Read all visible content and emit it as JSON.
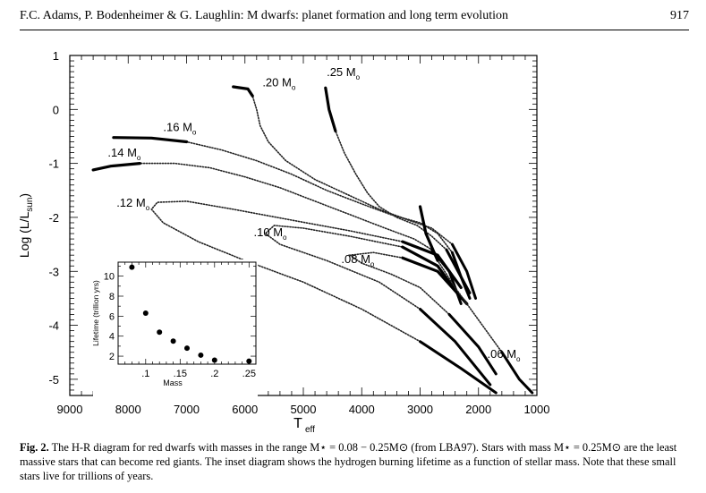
{
  "header": {
    "title": "F.C. Adams, P. Bodenheimer & G. Laughlin: M dwarfs: planet formation and long term evolution",
    "page_number": "917"
  },
  "chart_data": [
    {
      "type": "line",
      "xlabel": "T",
      "xlabel_sub": "eff",
      "ylabel": "Log (L/L",
      "ylabel_sub": "sun",
      "ylabel_end": ")",
      "xlim": [
        9000,
        1000
      ],
      "ylim": [
        -5.3,
        1
      ],
      "x_ticks": [
        "9000",
        "8000",
        "7000",
        "6000",
        "5000",
        "4000",
        "3000",
        "2000",
        "1000"
      ],
      "x_tick_values": [
        9000,
        8000,
        7000,
        6000,
        5000,
        4000,
        3000,
        2000,
        1000
      ],
      "y_ticks": [
        "1",
        "0",
        "-1",
        "-2",
        "-3",
        "-4",
        "-5"
      ],
      "y_tick_values": [
        1,
        0,
        -1,
        -2,
        -3,
        -4,
        -5
      ],
      "series": [
        {
          "name": ".25 M",
          "name_sub": "o",
          "label_at": [
            4600,
            0.62
          ],
          "points": [
            [
              4620,
              0.4
            ],
            [
              4560,
              0.0
            ],
            [
              4450,
              -0.4
            ],
            [
              4300,
              -0.8
            ],
            [
              4100,
              -1.2
            ],
            [
              3900,
              -1.55
            ],
            [
              3700,
              -1.8
            ],
            [
              3400,
              -2.0
            ],
            [
              3050,
              -2.15
            ],
            [
              2800,
              -2.35
            ],
            [
              2550,
              -2.6
            ],
            [
              2350,
              -3.0
            ],
            [
              2150,
              -3.4
            ]
          ]
        },
        {
          "name": ".20 M",
          "name_sub": "o",
          "label_at": [
            5700,
            0.43
          ],
          "points": [
            [
              6200,
              0.42
            ],
            [
              5950,
              0.38
            ],
            [
              5870,
              0.25
            ],
            [
              5800,
              0.0
            ],
            [
              5740,
              -0.3
            ],
            [
              5600,
              -0.6
            ],
            [
              5300,
              -0.95
            ],
            [
              4800,
              -1.3
            ],
            [
              4200,
              -1.6
            ],
            [
              3700,
              -1.85
            ],
            [
              3200,
              -2.05
            ],
            [
              2800,
              -2.2
            ],
            [
              2450,
              -2.5
            ],
            [
              2200,
              -3.0
            ],
            [
              2050,
              -3.5
            ]
          ]
        },
        {
          "name": ".16 M",
          "name_sub": "o",
          "label_at": [
            7400,
            -0.4
          ],
          "points": [
            [
              8250,
              -0.52
            ],
            [
              7600,
              -0.53
            ],
            [
              7000,
              -0.6
            ],
            [
              6400,
              -0.75
            ],
            [
              5800,
              -0.95
            ],
            [
              5200,
              -1.2
            ],
            [
              4600,
              -1.5
            ],
            [
              4000,
              -1.75
            ],
            [
              3500,
              -1.95
            ],
            [
              3000,
              -2.1
            ],
            [
              2700,
              -2.3
            ],
            [
              2450,
              -2.65
            ],
            [
              2300,
              -3.1
            ],
            [
              2150,
              -3.5
            ]
          ]
        },
        {
          "name": ".14 M",
          "name_sub": "o",
          "label_at": [
            8350,
            -0.87
          ],
          "points": [
            [
              8600,
              -1.12
            ],
            [
              8300,
              -1.05
            ],
            [
              7800,
              -1.0
            ],
            [
              7200,
              -1.0
            ],
            [
              6600,
              -1.08
            ],
            [
              6000,
              -1.25
            ],
            [
              5400,
              -1.45
            ],
            [
              4800,
              -1.7
            ],
            [
              4200,
              -1.95
            ],
            [
              3600,
              -2.2
            ],
            [
              3100,
              -2.4
            ],
            [
              2800,
              -2.6
            ],
            [
              2500,
              -3.0
            ],
            [
              2300,
              -3.6
            ]
          ]
        },
        {
          "name": ".12 M",
          "name_sub": "o",
          "label_at": [
            8200,
            -1.8
          ],
          "points": [
            [
              2300,
              -3.3
            ],
            [
              2700,
              -2.7
            ],
            [
              3300,
              -2.45
            ],
            [
              4200,
              -2.25
            ],
            [
              5200,
              -2.05
            ],
            [
              6200,
              -1.85
            ],
            [
              7000,
              -1.7
            ],
            [
              7500,
              -1.72
            ],
            [
              7600,
              -1.85
            ],
            [
              7400,
              -2.1
            ],
            [
              6800,
              -2.45
            ],
            [
              6000,
              -2.8
            ],
            [
              5000,
              -3.2
            ],
            [
              4000,
              -3.7
            ],
            [
              3000,
              -4.3
            ],
            [
              2300,
              -4.8
            ],
            [
              1700,
              -5.25
            ]
          ]
        },
        {
          "name": ".10 M",
          "name_sub": "o",
          "label_at": [
            5850,
            -2.35
          ],
          "points": [
            [
              2300,
              -3.5
            ],
            [
              2700,
              -2.9
            ],
            [
              3300,
              -2.55
            ],
            [
              4200,
              -2.35
            ],
            [
              5000,
              -2.2
            ],
            [
              5500,
              -2.15
            ],
            [
              5650,
              -2.3
            ],
            [
              5400,
              -2.5
            ],
            [
              4600,
              -2.8
            ],
            [
              3700,
              -3.2
            ],
            [
              3000,
              -3.7
            ],
            [
              2400,
              -4.3
            ],
            [
              1800,
              -5.1
            ]
          ]
        },
        {
          "name": ".08 M",
          "name_sub": "o",
          "label_at": [
            4350,
            -2.85
          ],
          "points": [
            [
              2200,
              -3.6
            ],
            [
              2700,
              -3.0
            ],
            [
              3300,
              -2.75
            ],
            [
              3800,
              -2.65
            ],
            [
              4200,
              -2.7
            ],
            [
              4000,
              -2.85
            ],
            [
              3500,
              -3.05
            ],
            [
              3000,
              -3.3
            ],
            [
              2500,
              -3.8
            ],
            [
              2000,
              -4.4
            ],
            [
              1700,
              -4.9
            ]
          ]
        },
        {
          "name": ".06 M",
          "name_sub": "o",
          "label_at": [
            1850,
            -4.6
          ],
          "points": [
            [
              3000,
              -1.8
            ],
            [
              2900,
              -2.3
            ],
            [
              2700,
              -2.8
            ],
            [
              2400,
              -3.3
            ],
            [
              2000,
              -3.9
            ],
            [
              1600,
              -4.5
            ],
            [
              1300,
              -5.0
            ],
            [
              1080,
              -5.25
            ]
          ]
        }
      ],
      "annotations": [
        ".25 M",
        ".20 M",
        ".16 M",
        ".14 M",
        ".12 M",
        ".10 M",
        ".08 M",
        ".06 M"
      ]
    },
    {
      "type": "scatter",
      "xlabel": "Mass",
      "ylabel": "Lifetime (trillion yrs)",
      "xlim": [
        0.06,
        0.26
      ],
      "ylim": [
        1.2,
        11.4
      ],
      "x_ticks": [
        ".1",
        ".15",
        ".2",
        ".25"
      ],
      "x_tick_values": [
        0.1,
        0.15,
        0.2,
        0.25
      ],
      "y_ticks": [
        "2",
        "4",
        "6",
        "8",
        "10"
      ],
      "y_tick_values": [
        2,
        4,
        6,
        8,
        10
      ],
      "x": [
        0.08,
        0.1,
        0.12,
        0.14,
        0.16,
        0.18,
        0.2,
        0.25
      ],
      "y": [
        10.9,
        6.3,
        4.4,
        3.5,
        2.8,
        2.1,
        1.6,
        1.5
      ]
    }
  ],
  "caption": {
    "label": "Fig. 2.",
    "text": " The H-R diagram for red dwarfs with masses in the range M⋆ = 0.08 − 0.25M⊙ (from LBA97). Stars with mass M⋆ = 0.25M⊙ are the least massive stars that can become red giants. The inset diagram shows the hydrogen burning lifetime as a function of stellar mass. Note that these small stars live for trillions of years."
  }
}
